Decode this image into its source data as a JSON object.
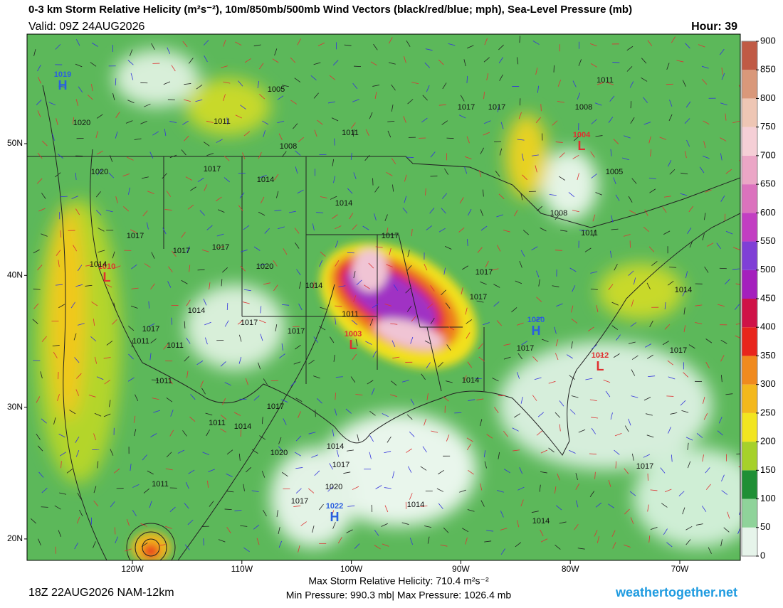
{
  "header": {
    "title": "0-3 km Storm Relative Helicity (m²s⁻²), 10m/850mb/500mb Wind Vectors (black/red/blue; mph), Sea-Level Pressure (mb)",
    "valid": "Valid: 09Z 24AUG2026",
    "hour": "Hour: 39"
  },
  "colorbar": {
    "ticks": [
      0,
      50,
      100,
      150,
      200,
      250,
      300,
      350,
      400,
      450,
      500,
      550,
      600,
      650,
      700,
      750,
      800,
      850,
      900
    ],
    "colors": [
      "#e6f4ea",
      "#8fd39a",
      "#1f8f35",
      "#a6d12a",
      "#f2e51f",
      "#f3b81c",
      "#f08a1e",
      "#e8251c",
      "#cf1247",
      "#a41fbd",
      "#7f3fd6",
      "#c23ec2",
      "#db72bd",
      "#eba6c6",
      "#f5cfd6",
      "#eec6b4",
      "#d9987a",
      "#c05a45"
    ]
  },
  "latitude_labels": [
    {
      "value": 50,
      "label": "50N"
    },
    {
      "value": 40,
      "label": "40N"
    },
    {
      "value": 30,
      "label": "30N"
    },
    {
      "value": 20,
      "label": "20N"
    }
  ],
  "longitude_labels": [
    {
      "value": -120,
      "label": "120W"
    },
    {
      "value": -110,
      "label": "110W"
    },
    {
      "value": -100,
      "label": "100W"
    },
    {
      "value": -90,
      "label": "90W"
    },
    {
      "value": -80,
      "label": "80W"
    },
    {
      "value": -70,
      "label": "70W"
    }
  ],
  "pressure_centers": [
    {
      "symbol": "H",
      "value": 1019
    },
    {
      "symbol": "L",
      "value": 1004
    },
    {
      "symbol": "L",
      "value": 1010
    },
    {
      "symbol": "L",
      "value": 1003
    },
    {
      "symbol": "H",
      "value": 1020
    },
    {
      "symbol": "L",
      "value": 1012
    },
    {
      "symbol": "H",
      "value": 1022
    }
  ],
  "isobar_labels": [
    1020,
    1020,
    1005,
    1011,
    1008,
    1011,
    1017,
    1014,
    1014,
    1017,
    1017,
    1011,
    1008,
    1005,
    1008,
    1011,
    1017,
    1017,
    1017,
    1014,
    1020,
    1014,
    1017,
    1011,
    1017,
    1017,
    1014,
    1014,
    1017,
    1017,
    1017,
    1011,
    1011,
    1017,
    1017,
    1011,
    1014,
    1017,
    1011,
    1014,
    1014,
    1020,
    1017,
    1020,
    1017,
    1011,
    1017,
    1014,
    1014
  ],
  "footer": {
    "run": "18Z 22AUG2026 NAM-12km",
    "max_helicity": "Max Storm Relative Helicity: 710.4 m²s⁻²",
    "pressure_range": "Min Pressure: 990.3 mb| Max Pressure: 1026.4 mb",
    "site": "weathertogether.net"
  }
}
